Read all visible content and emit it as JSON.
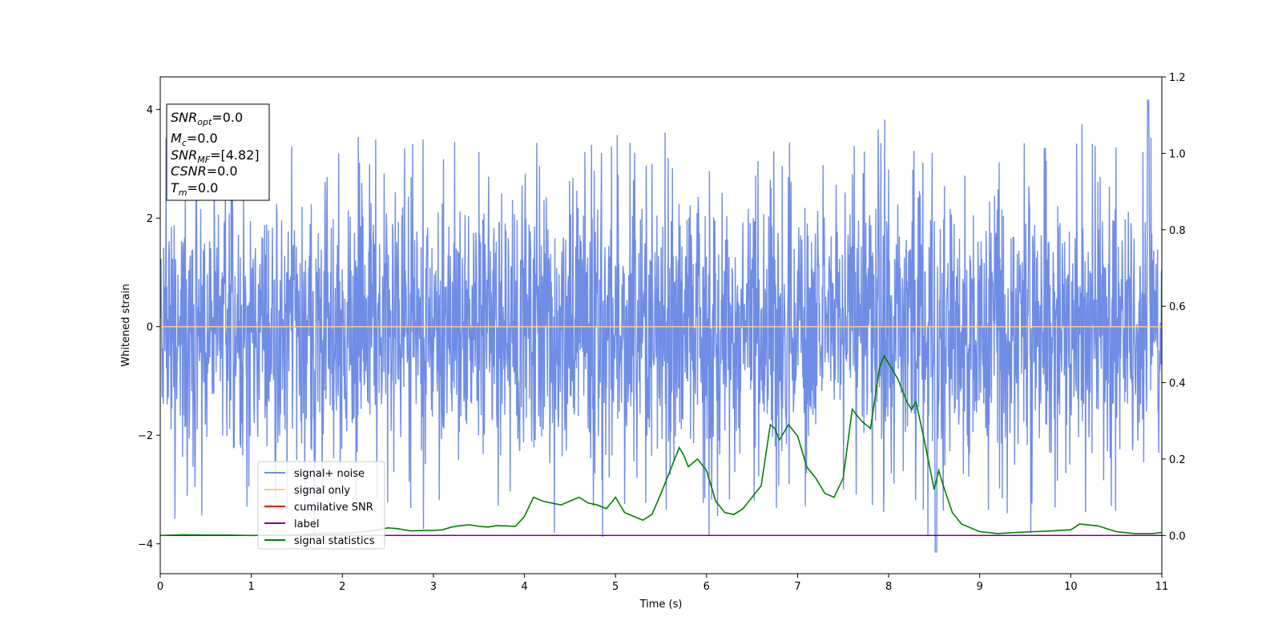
{
  "chart_data": {
    "type": "line",
    "xlabel": "Time (s)",
    "ylabel": "Whitened strain",
    "xlim": [
      0,
      11
    ],
    "ylim": [
      -4.55,
      4.6
    ],
    "y2lim": [
      -0.1,
      1.2
    ],
    "x_ticks": [
      "0",
      "1",
      "2",
      "3",
      "4",
      "5",
      "6",
      "7",
      "8",
      "9",
      "10",
      "11"
    ],
    "y_ticks": [
      "−4",
      "−2",
      "0",
      "2",
      "4"
    ],
    "y2_ticks": [
      "0.0",
      "0.2",
      "0.4",
      "0.6",
      "0.8",
      "1.0",
      "1.2"
    ],
    "grid": false,
    "legend_position": "lower-left",
    "info_box": {
      "snr_opt": {
        "base": "SNR",
        "sub": "opt",
        "rest": "=0.0"
      },
      "mc": {
        "base": "M",
        "sub": "c",
        "rest": "=0.0"
      },
      "snr_mf": {
        "base": "SNR",
        "sub": "MF",
        "rest": "=[4.82]"
      },
      "csnr": {
        "base": "CSNR",
        "sub": "",
        "rest": "=0.0"
      },
      "tm": {
        "base": "T",
        "sub": "m",
        "rest": "=0.0"
      }
    },
    "series": [
      {
        "name": "signal+ noise",
        "color": "#6f8de6",
        "axis": "left",
        "description_values": {
          "baseline_min": -1.5,
          "baseline_max": 1.5,
          "max_peak": 4.17,
          "min_peak": -4.15
        }
      },
      {
        "name": "signal only",
        "color": "#ffcc80",
        "axis": "left",
        "constant": 0.0
      },
      {
        "name": "cumilative SNR",
        "color": "#ff0000",
        "axis": "right",
        "values": []
      },
      {
        "name": "label",
        "color": "#800080",
        "axis": "right",
        "constant": 0.0
      },
      {
        "name": "signal statistics",
        "color": "#008000",
        "axis": "right",
        "x": [
          0,
          0.25,
          0.5,
          0.75,
          1,
          1.25,
          1.5,
          1.75,
          2,
          2.25,
          2.4,
          2.5,
          2.6,
          2.75,
          2.9,
          3,
          3.1,
          3.2,
          3.3,
          3.4,
          3.5,
          3.6,
          3.7,
          3.8,
          3.9,
          4,
          4.1,
          4.2,
          4.3,
          4.4,
          4.5,
          4.6,
          4.7,
          4.8,
          4.9,
          5,
          5.1,
          5.2,
          5.3,
          5.4,
          5.5,
          5.6,
          5.7,
          5.75,
          5.8,
          5.9,
          6,
          6.1,
          6.2,
          6.3,
          6.4,
          6.5,
          6.6,
          6.7,
          6.75,
          6.8,
          6.9,
          7,
          7.1,
          7.2,
          7.3,
          7.4,
          7.5,
          7.6,
          7.7,
          7.8,
          7.9,
          7.95,
          8,
          8.1,
          8.2,
          8.25,
          8.3,
          8.4,
          8.5,
          8.55,
          8.6,
          8.7,
          8.8,
          8.9,
          9,
          9.2,
          9.4,
          9.6,
          9.8,
          10,
          10.1,
          10.3,
          10.5,
          10.7,
          10.9,
          11
        ],
        "values": [
          0,
          0.002,
          0.001,
          0.001,
          0,
          0.001,
          0.002,
          0.005,
          0.005,
          0.01,
          0.015,
          0.02,
          0.018,
          0.012,
          0.013,
          0.013,
          0.015,
          0.022,
          0.026,
          0.028,
          0.024,
          0.022,
          0.026,
          0.025,
          0.024,
          0.05,
          0.1,
          0.09,
          0.085,
          0.08,
          0.09,
          0.1,
          0.085,
          0.08,
          0.07,
          0.1,
          0.06,
          0.05,
          0.04,
          0.055,
          0.11,
          0.17,
          0.23,
          0.21,
          0.18,
          0.2,
          0.17,
          0.09,
          0.06,
          0.055,
          0.07,
          0.1,
          0.13,
          0.29,
          0.28,
          0.25,
          0.29,
          0.26,
          0.18,
          0.15,
          0.11,
          0.1,
          0.15,
          0.33,
          0.3,
          0.28,
          0.44,
          0.47,
          0.45,
          0.41,
          0.35,
          0.33,
          0.35,
          0.24,
          0.12,
          0.17,
          0.13,
          0.06,
          0.03,
          0.02,
          0.01,
          0.005,
          0.008,
          0.01,
          0.012,
          0.015,
          0.03,
          0.025,
          0.01,
          0.005,
          0.005,
          0.008
        ]
      }
    ]
  }
}
